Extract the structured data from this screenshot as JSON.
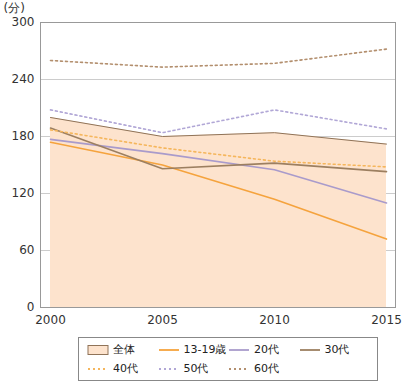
{
  "chart_data": {
    "type": "line",
    "y_label": "(分)",
    "categories": [
      "2000",
      "2005",
      "2010",
      "2015"
    ],
    "ylim": [
      0,
      300
    ],
    "yticks": [
      0,
      60,
      120,
      180,
      240,
      300
    ],
    "grid": true,
    "series": [
      {
        "name": "全体",
        "type": "area",
        "color": "#fde3cd",
        "values": [
          200,
          180,
          184,
          172
        ]
      },
      {
        "name": "13-19歳",
        "color": "#f5a33d",
        "line_style": "solid",
        "values": [
          174,
          150,
          114,
          72
        ]
      },
      {
        "name": "20代",
        "color": "#a99bcb",
        "line_style": "solid",
        "values": [
          177,
          162,
          145,
          110
        ]
      },
      {
        "name": "30代",
        "color": "#9c7f60",
        "line_style": "solid",
        "values": [
          189,
          146,
          152,
          143
        ]
      },
      {
        "name": "40代",
        "color": "#f5b65c",
        "line_style": "dotted",
        "values": [
          187,
          168,
          154,
          148
        ]
      },
      {
        "name": "50代",
        "color": "#b1a7d6",
        "line_style": "dotted",
        "values": [
          208,
          184,
          208,
          188
        ]
      },
      {
        "name": "60代",
        "color": "#b38f6e",
        "line_style": "dotted",
        "values": [
          260,
          253,
          257,
          272
        ]
      }
    ]
  }
}
